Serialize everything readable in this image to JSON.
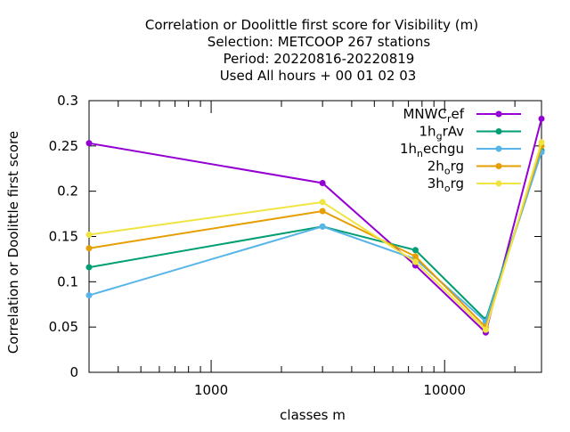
{
  "chart_data": {
    "type": "line",
    "title_lines": [
      "Correlation or Doolittle first score  for Visibility (m)",
      "Selection: METCOOP    267 stations",
      "Period: 20220816-20220819",
      "Used  All hours  + 00 01 02 03"
    ],
    "xlabel": "classes m",
    "ylabel": "Correlation or Doolittle first score",
    "x_scale": "log",
    "xlim": [
      300,
      26000
    ],
    "ylim": [
      0,
      0.3
    ],
    "x_ticks": [
      1000,
      10000
    ],
    "x_tick_labels": [
      "1000",
      "10000"
    ],
    "y_ticks": [
      0,
      0.05,
      0.1,
      0.15,
      0.2,
      0.25,
      0.3
    ],
    "y_tick_labels": [
      "0",
      "0.05",
      "0.1",
      "0.15",
      "0.2",
      "0.25",
      "0.3"
    ],
    "grid": false,
    "legend_position": "top-right",
    "x": [
      300,
      3000,
      7500,
      15000,
      26000
    ],
    "series": [
      {
        "name": "MNWC_ref",
        "legend_base": "MNWC",
        "legend_sub": "r",
        "legend_rest": "ef",
        "color": "#9400d3",
        "values": [
          0.253,
          0.209,
          0.118,
          0.044,
          0.28
        ]
      },
      {
        "name": "1h_grAv",
        "legend_base": "1h",
        "legend_sub": "g",
        "legend_rest": "rAv",
        "color": "#009e73",
        "values": [
          0.116,
          0.161,
          0.135,
          0.058,
          0.245
        ]
      },
      {
        "name": "1h_nechgu",
        "legend_base": "1h",
        "legend_sub": "n",
        "legend_rest": "echgu",
        "color": "#56b4e9",
        "values": [
          0.085,
          0.161,
          0.125,
          0.056,
          0.243
        ]
      },
      {
        "name": "2h_org",
        "legend_base": "2h",
        "legend_sub": "o",
        "legend_rest": "rg",
        "color": "#e69f00",
        "values": [
          0.137,
          0.178,
          0.128,
          0.05,
          0.25
        ]
      },
      {
        "name": "3h_org",
        "legend_base": "3h",
        "legend_sub": "o",
        "legend_rest": "rg",
        "color": "#f0e442",
        "values": [
          0.152,
          0.188,
          0.122,
          0.047,
          0.254
        ]
      }
    ]
  }
}
